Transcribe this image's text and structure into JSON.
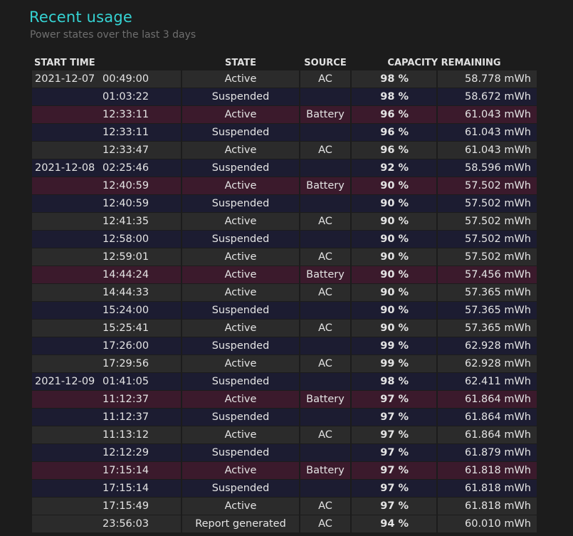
{
  "header": {
    "title": "Recent usage",
    "subtitle": "Power states over the last 3 days"
  },
  "table": {
    "columns": {
      "start_time": "START TIME",
      "state": "STATE",
      "source": "SOURCE",
      "capacity": "CAPACITY REMAINING"
    },
    "rows": [
      {
        "date": "2021-12-07",
        "time": "00:49:00",
        "state": "Active",
        "source": "AC",
        "pct": "98 %",
        "mwh": "58.778 mWh",
        "kind": "active"
      },
      {
        "date": "",
        "time": "01:03:22",
        "state": "Suspended",
        "source": "",
        "pct": "98 %",
        "mwh": "58.672 mWh",
        "kind": "suspended"
      },
      {
        "date": "",
        "time": "12:33:11",
        "state": "Active",
        "source": "Battery",
        "pct": "96 %",
        "mwh": "61.043 mWh",
        "kind": "battery"
      },
      {
        "date": "",
        "time": "12:33:11",
        "state": "Suspended",
        "source": "",
        "pct": "96 %",
        "mwh": "61.043 mWh",
        "kind": "suspended"
      },
      {
        "date": "",
        "time": "12:33:47",
        "state": "Active",
        "source": "AC",
        "pct": "96 %",
        "mwh": "61.043 mWh",
        "kind": "active"
      },
      {
        "date": "2021-12-08",
        "time": "02:25:46",
        "state": "Suspended",
        "source": "",
        "pct": "92 %",
        "mwh": "58.596 mWh",
        "kind": "suspended"
      },
      {
        "date": "",
        "time": "12:40:59",
        "state": "Active",
        "source": "Battery",
        "pct": "90 %",
        "mwh": "57.502 mWh",
        "kind": "battery"
      },
      {
        "date": "",
        "time": "12:40:59",
        "state": "Suspended",
        "source": "",
        "pct": "90 %",
        "mwh": "57.502 mWh",
        "kind": "suspended"
      },
      {
        "date": "",
        "time": "12:41:35",
        "state": "Active",
        "source": "AC",
        "pct": "90 %",
        "mwh": "57.502 mWh",
        "kind": "active"
      },
      {
        "date": "",
        "time": "12:58:00",
        "state": "Suspended",
        "source": "",
        "pct": "90 %",
        "mwh": "57.502 mWh",
        "kind": "suspended"
      },
      {
        "date": "",
        "time": "12:59:01",
        "state": "Active",
        "source": "AC",
        "pct": "90 %",
        "mwh": "57.502 mWh",
        "kind": "active"
      },
      {
        "date": "",
        "time": "14:44:24",
        "state": "Active",
        "source": "Battery",
        "pct": "90 %",
        "mwh": "57.456 mWh",
        "kind": "battery"
      },
      {
        "date": "",
        "time": "14:44:33",
        "state": "Active",
        "source": "AC",
        "pct": "90 %",
        "mwh": "57.365 mWh",
        "kind": "active"
      },
      {
        "date": "",
        "time": "15:24:00",
        "state": "Suspended",
        "source": "",
        "pct": "90 %",
        "mwh": "57.365 mWh",
        "kind": "suspended"
      },
      {
        "date": "",
        "time": "15:25:41",
        "state": "Active",
        "source": "AC",
        "pct": "90 %",
        "mwh": "57.365 mWh",
        "kind": "active"
      },
      {
        "date": "",
        "time": "17:26:00",
        "state": "Suspended",
        "source": "",
        "pct": "99 %",
        "mwh": "62.928 mWh",
        "kind": "suspended"
      },
      {
        "date": "",
        "time": "17:29:56",
        "state": "Active",
        "source": "AC",
        "pct": "99 %",
        "mwh": "62.928 mWh",
        "kind": "active"
      },
      {
        "date": "2021-12-09",
        "time": "01:41:05",
        "state": "Suspended",
        "source": "",
        "pct": "98 %",
        "mwh": "62.411 mWh",
        "kind": "suspended"
      },
      {
        "date": "",
        "time": "11:12:37",
        "state": "Active",
        "source": "Battery",
        "pct": "97 %",
        "mwh": "61.864 mWh",
        "kind": "battery"
      },
      {
        "date": "",
        "time": "11:12:37",
        "state": "Suspended",
        "source": "",
        "pct": "97 %",
        "mwh": "61.864 mWh",
        "kind": "suspended"
      },
      {
        "date": "",
        "time": "11:13:12",
        "state": "Active",
        "source": "AC",
        "pct": "97 %",
        "mwh": "61.864 mWh",
        "kind": "active"
      },
      {
        "date": "",
        "time": "12:12:29",
        "state": "Suspended",
        "source": "",
        "pct": "97 %",
        "mwh": "61.879 mWh",
        "kind": "suspended"
      },
      {
        "date": "",
        "time": "17:15:14",
        "state": "Active",
        "source": "Battery",
        "pct": "97 %",
        "mwh": "61.818 mWh",
        "kind": "battery"
      },
      {
        "date": "",
        "time": "17:15:14",
        "state": "Suspended",
        "source": "",
        "pct": "97 %",
        "mwh": "61.818 mWh",
        "kind": "suspended"
      },
      {
        "date": "",
        "time": "17:15:49",
        "state": "Active",
        "source": "AC",
        "pct": "97 %",
        "mwh": "61.818 mWh",
        "kind": "active"
      },
      {
        "date": "",
        "time": "23:56:03",
        "state": "Report generated",
        "source": "AC",
        "pct": "94 %",
        "mwh": "60.010 mWh",
        "kind": "report"
      }
    ]
  },
  "colors": {
    "title": "#35d3d3",
    "row_active": "#2b2b2b",
    "row_suspended": "#1c1c31",
    "row_battery": "#3b1a2c"
  }
}
